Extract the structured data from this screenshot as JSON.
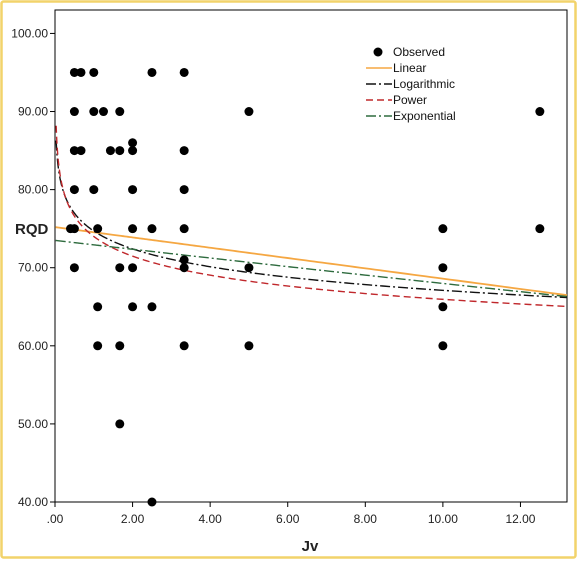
{
  "chart_data": {
    "type": "scatter",
    "title": "",
    "xlabel": "Jv",
    "ylabel": "RQD",
    "xlim": [
      0,
      13.2
    ],
    "ylim": [
      40,
      103
    ],
    "x_ticks": [
      0,
      2,
      4,
      6,
      8,
      10,
      12
    ],
    "x_tick_labels": [
      ".00",
      "2.00",
      "4.00",
      "6.00",
      "8.00",
      "10.00",
      "12.00"
    ],
    "y_ticks": [
      40,
      50,
      60,
      70,
      80,
      90,
      100
    ],
    "y_tick_labels": [
      "40.00",
      "50.00",
      "60.00",
      "70.00",
      "80.00",
      "90.00",
      "100.00"
    ],
    "grid": false,
    "legend_position": "top-right",
    "legend": [
      "Observed",
      "Linear",
      "Logarithmic",
      "Power",
      "Exponential"
    ],
    "colors": {
      "observed": "#000000",
      "linear": "#f5a742",
      "logarithmic": "#111111",
      "power": "#c0282c",
      "exponential": "#2e6b3e",
      "frame_border": "#f2d36b"
    },
    "observed": [
      {
        "x": 0.4,
        "y": 75
      },
      {
        "x": 0.5,
        "y": 95
      },
      {
        "x": 0.5,
        "y": 90
      },
      {
        "x": 0.5,
        "y": 85
      },
      {
        "x": 0.5,
        "y": 80
      },
      {
        "x": 0.5,
        "y": 75
      },
      {
        "x": 0.5,
        "y": 70
      },
      {
        "x": 0.67,
        "y": 95
      },
      {
        "x": 0.67,
        "y": 85
      },
      {
        "x": 1.0,
        "y": 95
      },
      {
        "x": 1.0,
        "y": 90
      },
      {
        "x": 1.0,
        "y": 80
      },
      {
        "x": 1.1,
        "y": 75
      },
      {
        "x": 1.1,
        "y": 65
      },
      {
        "x": 1.1,
        "y": 60
      },
      {
        "x": 1.25,
        "y": 90
      },
      {
        "x": 1.43,
        "y": 85
      },
      {
        "x": 1.67,
        "y": 90
      },
      {
        "x": 1.67,
        "y": 85
      },
      {
        "x": 1.67,
        "y": 70
      },
      {
        "x": 1.67,
        "y": 60
      },
      {
        "x": 1.67,
        "y": 50
      },
      {
        "x": 2.0,
        "y": 86
      },
      {
        "x": 2.0,
        "y": 85
      },
      {
        "x": 2.0,
        "y": 80
      },
      {
        "x": 2.0,
        "y": 75
      },
      {
        "x": 2.0,
        "y": 70
      },
      {
        "x": 2.0,
        "y": 65
      },
      {
        "x": 2.5,
        "y": 95
      },
      {
        "x": 2.5,
        "y": 75
      },
      {
        "x": 2.5,
        "y": 65
      },
      {
        "x": 2.5,
        "y": 40
      },
      {
        "x": 3.33,
        "y": 95
      },
      {
        "x": 3.33,
        "y": 85
      },
      {
        "x": 3.33,
        "y": 80
      },
      {
        "x": 3.33,
        "y": 75
      },
      {
        "x": 3.33,
        "y": 71
      },
      {
        "x": 3.33,
        "y": 70
      },
      {
        "x": 3.33,
        "y": 60
      },
      {
        "x": 5.0,
        "y": 90
      },
      {
        "x": 5.0,
        "y": 70
      },
      {
        "x": 5.0,
        "y": 60
      },
      {
        "x": 10.0,
        "y": 75
      },
      {
        "x": 10.0,
        "y": 70
      },
      {
        "x": 10.0,
        "y": 65
      },
      {
        "x": 10.0,
        "y": 60
      },
      {
        "x": 12.5,
        "y": 90
      },
      {
        "x": 12.5,
        "y": 75
      }
    ],
    "fits": {
      "linear": {
        "a": 75.2,
        "b": -0.66
      },
      "logarithmic": {
        "a": 74.7,
        "b": -3.3
      },
      "power": {
        "a": 74.0,
        "b": -0.05
      },
      "exponential": {
        "a": 73.5,
        "b": -0.0078
      }
    }
  }
}
